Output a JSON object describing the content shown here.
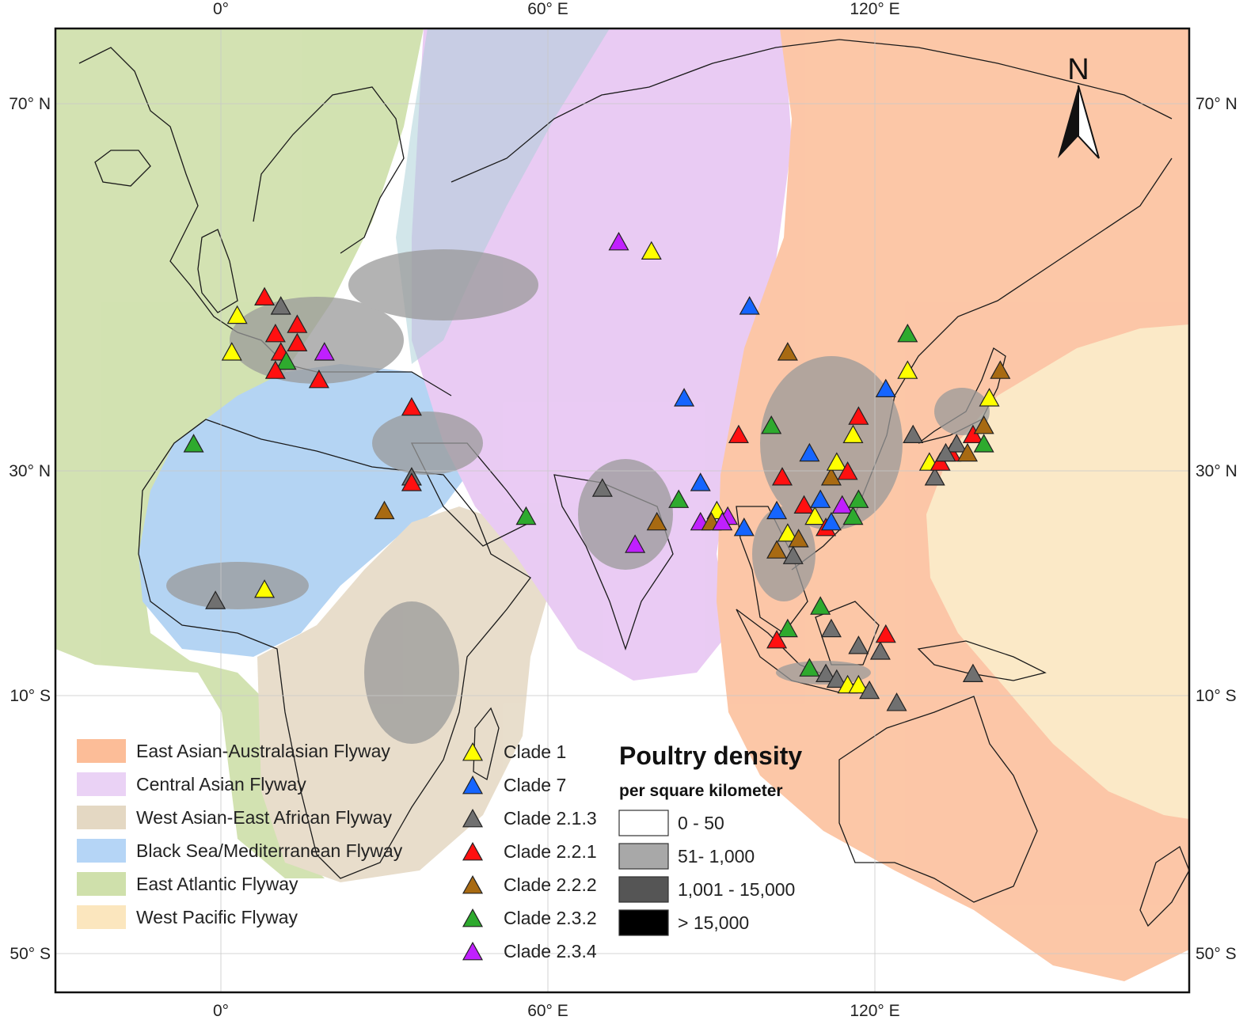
{
  "map": {
    "north_label": "N",
    "latitude_labels": [
      "70° N",
      "30° N",
      "10° S",
      "50° S"
    ],
    "longitude_labels": [
      "0°",
      "60° E",
      "120° E"
    ]
  },
  "colors": {
    "east_asian_australasian": "#fcbd98",
    "central_asian": "#e6c2f2",
    "west_asian_east_african": "#e4d8c3",
    "black_sea_mediterranean": "#a8cdf2",
    "east_atlantic": "#cbdda4",
    "west_pacific": "#fbe6be",
    "clade_1": "#ffff00",
    "clade_7": "#1565ff",
    "clade_2_1_3": "#707070",
    "clade_2_2_1": "#ff1010",
    "clade_2_2_2": "#a86a12",
    "clade_2_3_2": "#2eaa2e",
    "clade_2_3_4": "#c020ff"
  },
  "flyway_legend": [
    {
      "label": "East Asian-Australasian Flyway",
      "color": "#fcbd98"
    },
    {
      "label": "Central Asian Flyway",
      "color": "#ead2f5"
    },
    {
      "label": "West Asian-East African Flyway",
      "color": "#e4d8c3"
    },
    {
      "label": "Black Sea/Mediterranean Flyway",
      "color": "#b5d5f6"
    },
    {
      "label": "East Atlantic Flyway",
      "color": "#cfe0ab"
    },
    {
      "label": "West Pacific Flyway",
      "color": "#fbe6be"
    }
  ],
  "clade_legend": [
    {
      "label": "Clade 1",
      "color": "#ffff00"
    },
    {
      "label": "Clade 7",
      "color": "#1565ff"
    },
    {
      "label": "Clade 2.1.3",
      "color": "#707070"
    },
    {
      "label": "Clade 2.2.1",
      "color": "#ff1010"
    },
    {
      "label": "Clade 2.2.2",
      "color": "#a86a12"
    },
    {
      "label": "Clade 2.3.2",
      "color": "#2eaa2e"
    },
    {
      "label": "Clade 2.3.4",
      "color": "#c020ff"
    }
  ],
  "poultry_legend": {
    "title": "Poultry density",
    "subtitle": "per square kilometer",
    "classes": [
      {
        "label": "0 - 50",
        "color": "#ffffff"
      },
      {
        "label": "51- 1,000",
        "color": "#a8a8a8"
      },
      {
        "label": "1,001 - 15,000",
        "color": "#555555"
      },
      {
        "label": "> 15,000",
        "color": "#000000"
      }
    ]
  },
  "outbreaks": [
    {
      "clade": "1",
      "lon": 3,
      "lat": 47
    },
    {
      "clade": "1",
      "lon": 2,
      "lat": 43
    },
    {
      "clade": "2.2.1",
      "lon": 8,
      "lat": 49
    },
    {
      "clade": "2.1.3",
      "lon": 11,
      "lat": 48
    },
    {
      "clade": "2.2.1",
      "lon": 10,
      "lat": 45
    },
    {
      "clade": "2.2.1",
      "lon": 11,
      "lat": 43
    },
    {
      "clade": "2.3.2",
      "lon": 12,
      "lat": 42
    },
    {
      "clade": "2.2.1",
      "lon": 14,
      "lat": 46
    },
    {
      "clade": "2.2.1",
      "lon": 14,
      "lat": 44
    },
    {
      "clade": "2.3.4",
      "lon": 19,
      "lat": 43
    },
    {
      "clade": "2.2.1",
      "lon": 18,
      "lat": 40
    },
    {
      "clade": "2.2.1",
      "lon": 10,
      "lat": 41
    },
    {
      "clade": "2.2.1",
      "lon": 35,
      "lat": 37
    },
    {
      "clade": "2.3.2",
      "lon": -5,
      "lat": 33
    },
    {
      "clade": "2.1.3",
      "lon": 35,
      "lat": 29
    },
    {
      "clade": "2.2.1",
      "lon": 35,
      "lat": 28
    },
    {
      "clade": "2.2.2",
      "lon": 30,
      "lat": 23
    },
    {
      "clade": "2.3.2",
      "lon": 56,
      "lat": 22
    },
    {
      "clade": "1",
      "lon": 8,
      "lat": 9
    },
    {
      "clade": "2.1.3",
      "lon": -1,
      "lat": 7
    },
    {
      "clade": "2.3.4",
      "lon": 73,
      "lat": 55
    },
    {
      "clade": "1",
      "lon": 79,
      "lat": 54
    },
    {
      "clade": "2.1.3",
      "lon": 70,
      "lat": 27
    },
    {
      "clade": "2.2.2",
      "lon": 80,
      "lat": 21
    },
    {
      "clade": "2.3.4",
      "lon": 76,
      "lat": 17
    },
    {
      "clade": "2.3.2",
      "lon": 84,
      "lat": 25
    },
    {
      "clade": "1",
      "lon": 91,
      "lat": 23
    },
    {
      "clade": "2.3.4",
      "lon": 93,
      "lat": 22
    },
    {
      "clade": "2.3.4",
      "lon": 88,
      "lat": 21
    },
    {
      "clade": "2.2.2",
      "lon": 90,
      "lat": 21
    },
    {
      "clade": "2.3.4",
      "lon": 92,
      "lat": 21
    },
    {
      "clade": "2.2.1",
      "lon": 95,
      "lat": 34
    },
    {
      "clade": "7",
      "lon": 85,
      "lat": 38
    },
    {
      "clade": "7",
      "lon": 88,
      "lat": 28
    },
    {
      "clade": "7",
      "lon": 97,
      "lat": 48
    },
    {
      "clade": "2.2.2",
      "lon": 104,
      "lat": 43
    },
    {
      "clade": "2.3.2",
      "lon": 101,
      "lat": 35
    },
    {
      "clade": "2.2.1",
      "lon": 103,
      "lat": 29
    },
    {
      "clade": "7",
      "lon": 102,
      "lat": 23
    },
    {
      "clade": "7",
      "lon": 96,
      "lat": 20
    },
    {
      "clade": "1",
      "lon": 104,
      "lat": 19
    },
    {
      "clade": "2.2.2",
      "lon": 106,
      "lat": 18
    },
    {
      "clade": "2.2.2",
      "lon": 102,
      "lat": 16
    },
    {
      "clade": "2.1.3",
      "lon": 105,
      "lat": 15
    },
    {
      "clade": "2.2.1",
      "lon": 107,
      "lat": 24
    },
    {
      "clade": "1",
      "lon": 109,
      "lat": 22
    },
    {
      "clade": "7",
      "lon": 110,
      "lat": 25
    },
    {
      "clade": "2.2.1",
      "lon": 111,
      "lat": 20
    },
    {
      "clade": "7",
      "lon": 112,
      "lat": 21
    },
    {
      "clade": "2.3.4",
      "lon": 114,
      "lat": 24
    },
    {
      "clade": "2.3.2",
      "lon": 116,
      "lat": 22
    },
    {
      "clade": "2.3.2",
      "lon": 117,
      "lat": 25
    },
    {
      "clade": "2.2.2",
      "lon": 112,
      "lat": 29
    },
    {
      "clade": "1",
      "lon": 113,
      "lat": 31
    },
    {
      "clade": "2.2.1",
      "lon": 115,
      "lat": 30
    },
    {
      "clade": "1",
      "lon": 116,
      "lat": 34
    },
    {
      "clade": "2.2.1",
      "lon": 117,
      "lat": 36
    },
    {
      "clade": "7",
      "lon": 108,
      "lat": 32
    },
    {
      "clade": "2.3.2",
      "lon": 126,
      "lat": 45
    },
    {
      "clade": "1",
      "lon": 126,
      "lat": 41
    },
    {
      "clade": "7",
      "lon": 122,
      "lat": 39
    },
    {
      "clade": "2.1.3",
      "lon": 127,
      "lat": 34
    },
    {
      "clade": "1",
      "lon": 130,
      "lat": 31
    },
    {
      "clade": "2.1.3",
      "lon": 131,
      "lat": 29
    },
    {
      "clade": "2.2.1",
      "lon": 132,
      "lat": 31
    },
    {
      "clade": "2.2.1",
      "lon": 134,
      "lat": 32
    },
    {
      "clade": "2.1.3",
      "lon": 135,
      "lat": 33
    },
    {
      "clade": "2.1.3",
      "lon": 133,
      "lat": 32
    },
    {
      "clade": "2.2.2",
      "lon": 137,
      "lat": 32
    },
    {
      "clade": "2.2.1",
      "lon": 138,
      "lat": 34
    },
    {
      "clade": "2.3.2",
      "lon": 140,
      "lat": 33
    },
    {
      "clade": "2.2.2",
      "lon": 140,
      "lat": 35
    },
    {
      "clade": "1",
      "lon": 141,
      "lat": 38
    },
    {
      "clade": "2.2.2",
      "lon": 143,
      "lat": 41
    },
    {
      "clade": "2.3.2",
      "lon": 104,
      "lat": 2
    },
    {
      "clade": "2.2.1",
      "lon": 102,
      "lat": 0
    },
    {
      "clade": "2.3.2",
      "lon": 108,
      "lat": -5
    },
    {
      "clade": "2.1.3",
      "lon": 111,
      "lat": -6
    },
    {
      "clade": "2.1.3",
      "lon": 113,
      "lat": -7
    },
    {
      "clade": "1",
      "lon": 115,
      "lat": -8
    },
    {
      "clade": "1",
      "lon": 117,
      "lat": -8
    },
    {
      "clade": "2.1.3",
      "lon": 119,
      "lat": -9
    },
    {
      "clade": "2.3.2",
      "lon": 110,
      "lat": 6
    },
    {
      "clade": "2.1.3",
      "lon": 112,
      "lat": 2
    },
    {
      "clade": "2.1.3",
      "lon": 117,
      "lat": -1
    },
    {
      "clade": "2.1.3",
      "lon": 121,
      "lat": -2
    },
    {
      "clade": "2.2.1",
      "lon": 122,
      "lat": 1
    },
    {
      "clade": "2.1.3",
      "lon": 124,
      "lat": -11
    },
    {
      "clade": "2.1.3",
      "lon": 138,
      "lat": -6
    }
  ]
}
